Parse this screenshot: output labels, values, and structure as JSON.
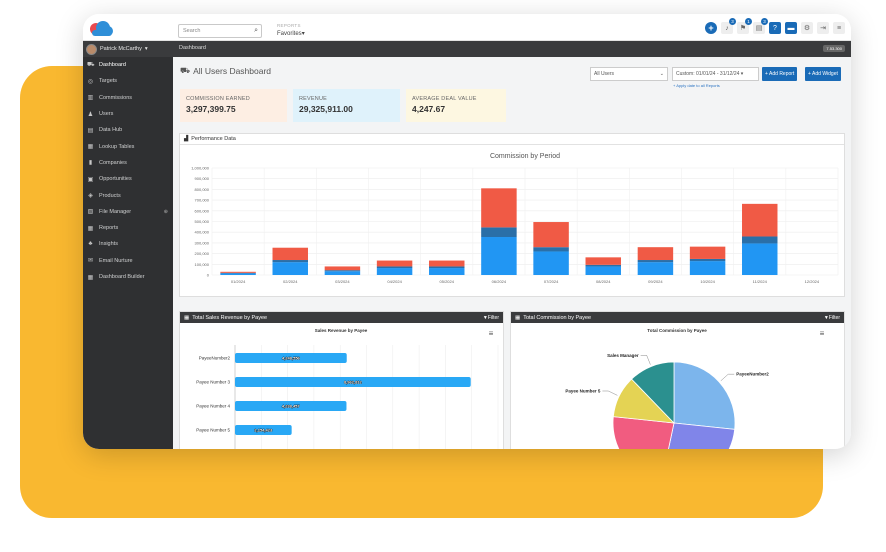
{
  "topbar": {
    "search_placeholder": "Search",
    "reports_label": "REPORTS",
    "favorites_label": "Favorites",
    "badges": [
      "3",
      "1",
      "3"
    ]
  },
  "user": {
    "name": "Patrick McCarthy"
  },
  "breadcrumb": "Dashboard",
  "version": "7.53.300",
  "sidebar": {
    "items": [
      {
        "label": "Dashboard",
        "icon": "dashboard-icon",
        "active": true
      },
      {
        "label": "Targets",
        "icon": "target-icon"
      },
      {
        "label": "Commissions",
        "icon": "bar-chart-icon"
      },
      {
        "label": "Users",
        "icon": "user-icon"
      },
      {
        "label": "Data Hub",
        "icon": "database-icon"
      },
      {
        "label": "Lookup Tables",
        "icon": "table-icon"
      },
      {
        "label": "Companies",
        "icon": "building-icon"
      },
      {
        "label": "Opportunities",
        "icon": "dollar-icon"
      },
      {
        "label": "Products",
        "icon": "box-icon"
      },
      {
        "label": "File Manager",
        "icon": "folder-icon",
        "expand": "⊕"
      },
      {
        "label": "Reports",
        "icon": "grid-icon"
      },
      {
        "label": "Insights",
        "icon": "sitemap-icon"
      },
      {
        "label": "Email Nurture",
        "icon": "mail-icon"
      },
      {
        "label": "Dashboard Builder",
        "icon": "grid-icon"
      }
    ]
  },
  "page": {
    "title": "All Users Dashboard",
    "user_select": "All Users",
    "date_select": "Custom: 01/01/24 - 31/12/24",
    "add_report": "+ Add Report",
    "add_widget": "+ Add Widget",
    "apply_link": "+ Apply date to all Reports"
  },
  "kpis": [
    {
      "label": "COMMISSION EARNED",
      "value": "3,297,399.75",
      "bg": "#fdeee3"
    },
    {
      "label": "REVENUE",
      "value": "29,325,911.00",
      "bg": "#dff2fb"
    },
    {
      "label": "AVERAGE DEAL VALUE",
      "value": "4,247.67",
      "bg": "#fdf7e1"
    }
  ],
  "performance": {
    "header": "Performance Data",
    "chart_data": {
      "type": "bar",
      "title": "Commission by Period",
      "stacked": true,
      "categories": [
        "01/2024",
        "02/2024",
        "03/2024",
        "04/2024",
        "05/2024",
        "06/2024",
        "07/2024",
        "08/2024",
        "09/2024",
        "10/2024",
        "11/2024",
        "12/2024"
      ],
      "ylim": [
        0,
        1000000
      ],
      "yticks": [
        "0",
        "100,000",
        "200,000",
        "300,000",
        "400,000",
        "500,000",
        "600,000",
        "700,000",
        "800,000",
        "900,000",
        "1,000,000"
      ],
      "series": [
        {
          "color": "#2196f3",
          "values": [
            15000,
            120000,
            35000,
            65000,
            65000,
            355000,
            220000,
            80000,
            120000,
            130000,
            295000,
            0
          ]
        },
        {
          "color": "#2a6fa8",
          "values": [
            5000,
            20000,
            10000,
            15000,
            15000,
            90000,
            40000,
            15000,
            20000,
            20000,
            65000,
            0
          ]
        },
        {
          "color": "#f05a45",
          "values": [
            10000,
            115000,
            35000,
            55000,
            55000,
            365000,
            235000,
            70000,
            120000,
            115000,
            305000,
            0
          ]
        }
      ]
    }
  },
  "sales_revenue": {
    "header": "Total Sales Revenue by Payee",
    "filter_label": "Filter",
    "chart_data": {
      "type": "bar",
      "orientation": "horizontal",
      "title": "Sales Revenue by Payee",
      "categories": [
        "PayeeNumber2",
        "Payee Number 3",
        "Payee Number 4",
        "Payee Number 5"
      ],
      "values": [
        4248556,
        8962812,
        4238457,
        2154423
      ],
      "labels": [
        "4,248,556",
        "8,962,812",
        "4,238,457",
        "2,154,423"
      ],
      "xlim": [
        0,
        10000000
      ],
      "color": "#29a8f5"
    }
  },
  "commission_payee": {
    "header": "Total Commission by Payee",
    "filter_label": "Filter",
    "chart_data": {
      "type": "pie",
      "title": "Total Commission by Payee",
      "slices": [
        {
          "name": "PayeeNumber2",
          "value": 24,
          "color": "#7cb5ec"
        },
        {
          "name": "",
          "value": 24,
          "color": "#8085e9"
        },
        {
          "name": "",
          "value": 21,
          "color": "#f15c80"
        },
        {
          "name": "Payee Number 5",
          "value": 10,
          "color": "#e4d354"
        },
        {
          "name": "Sales Manager",
          "value": 11,
          "color": "#2b908f"
        }
      ]
    }
  }
}
